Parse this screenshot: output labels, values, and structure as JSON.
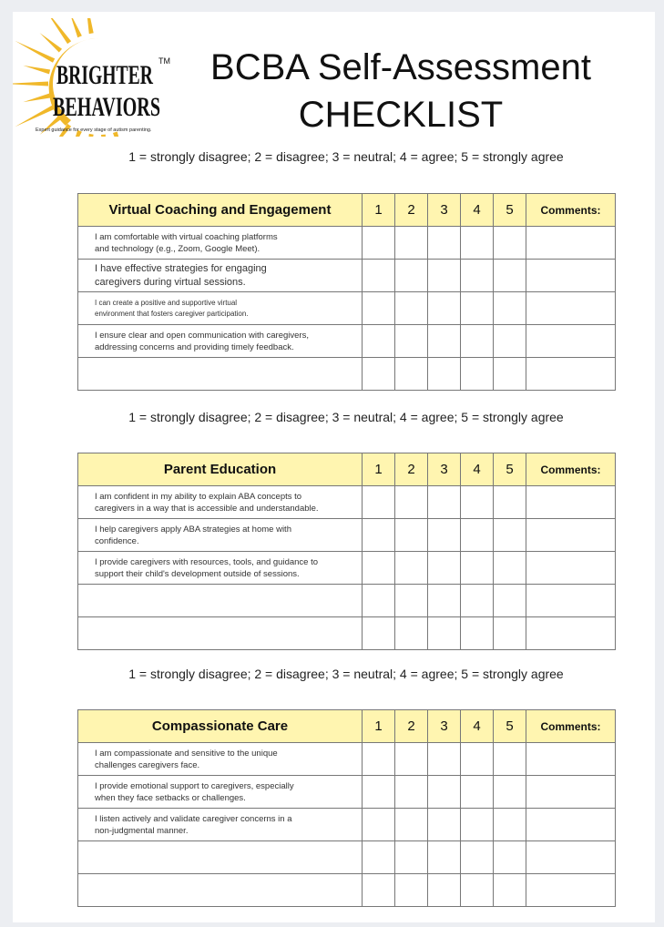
{
  "logo": {
    "line1": "BRIGHTER",
    "line2": "BEHAVIORS",
    "tm": "TM",
    "tagline": "Expert guidance for every stage of autism parenting.",
    "sun_color": "#f0b82a"
  },
  "title": {
    "line1": "BCBA Self-Assessment",
    "line2": "CHECKLIST"
  },
  "scale_text": "1 = strongly disagree; 2 = disagree; 3 = neutral; 4 = agree; 5 = strongly agree",
  "columns": [
    "1",
    "2",
    "3",
    "4",
    "5"
  ],
  "comments_label": "Comments:",
  "header_color": "#fff5b0",
  "sections": [
    {
      "title": "Virtual Coaching and Engagement",
      "items": [
        "I am comfortable with virtual coaching platforms\nand technology (e.g., Zoom, Google Meet).",
        "I have effective strategies for engaging\ncaregivers during virtual sessions.",
        "I can create a positive and supportive virtual\nenvironment that fosters caregiver participation.",
        "I ensure clear and open communication with caregivers,\naddressing concerns and providing timely feedback.",
        ""
      ]
    },
    {
      "title": "Parent Education",
      "items": [
        "I am confident in my ability to explain ABA concepts to\ncaregivers in a way that is accessible and understandable.",
        "I help caregivers apply ABA strategies at home with\nconfidence.",
        "I provide caregivers with resources, tools, and guidance to\nsupport their child's development outside of sessions.",
        "",
        ""
      ]
    },
    {
      "title": "Compassionate Care",
      "items": [
        "I am compassionate and sensitive to the unique\nchallenges caregivers face.",
        "I provide emotional support to caregivers, especially\nwhen they face setbacks or challenges.",
        "I listen actively and validate caregiver concerns in a\nnon-judgmental manner.",
        "",
        ""
      ]
    }
  ]
}
